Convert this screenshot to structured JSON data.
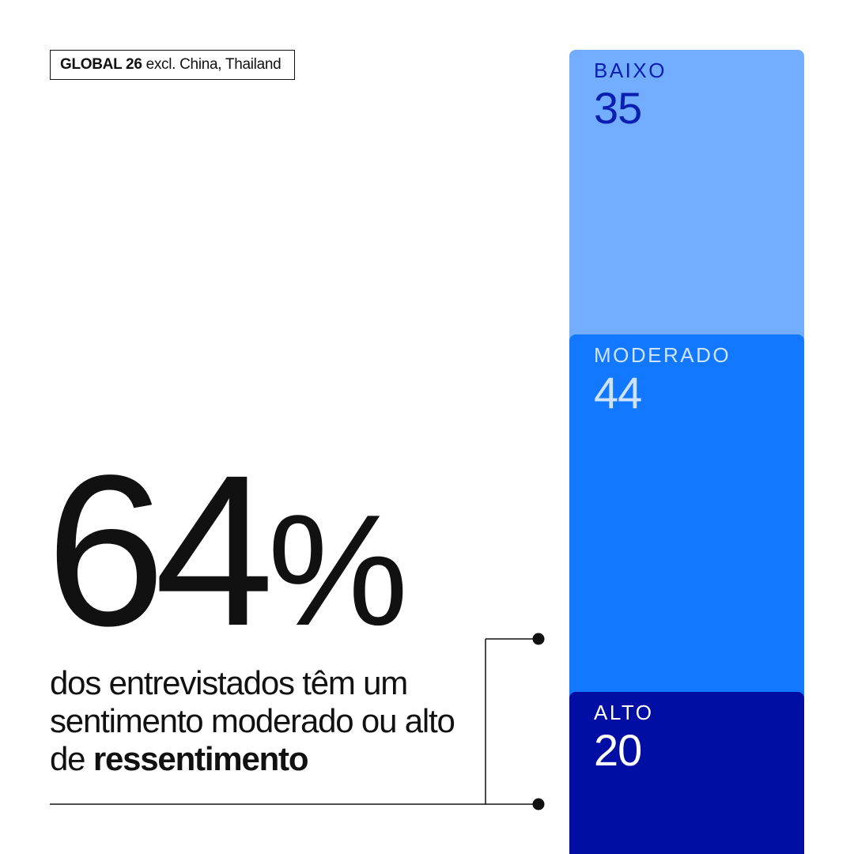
{
  "scope": {
    "strong": "GLOBAL 26",
    "rest": "excl. China, Thailand"
  },
  "headline": {
    "number": "64",
    "unit": "%"
  },
  "caption": {
    "text": "dos entrevistados têm um sentimento moderado ou alto de",
    "emphasis": "ressentimento"
  },
  "colors": {
    "baixo": "#72adff",
    "moderado": "#1178ff",
    "alto": "#000ea4",
    "baixo_text": "#0a1fb0",
    "moderado_text": "#cfe3ff",
    "alto_text": "#ffffff",
    "ink": "#111111"
  },
  "chart_data": {
    "type": "bar",
    "stacked": true,
    "categories": [
      "BAIXO",
      "MODERADO",
      "ALTO"
    ],
    "values": [
      35,
      44,
      20
    ]
  }
}
